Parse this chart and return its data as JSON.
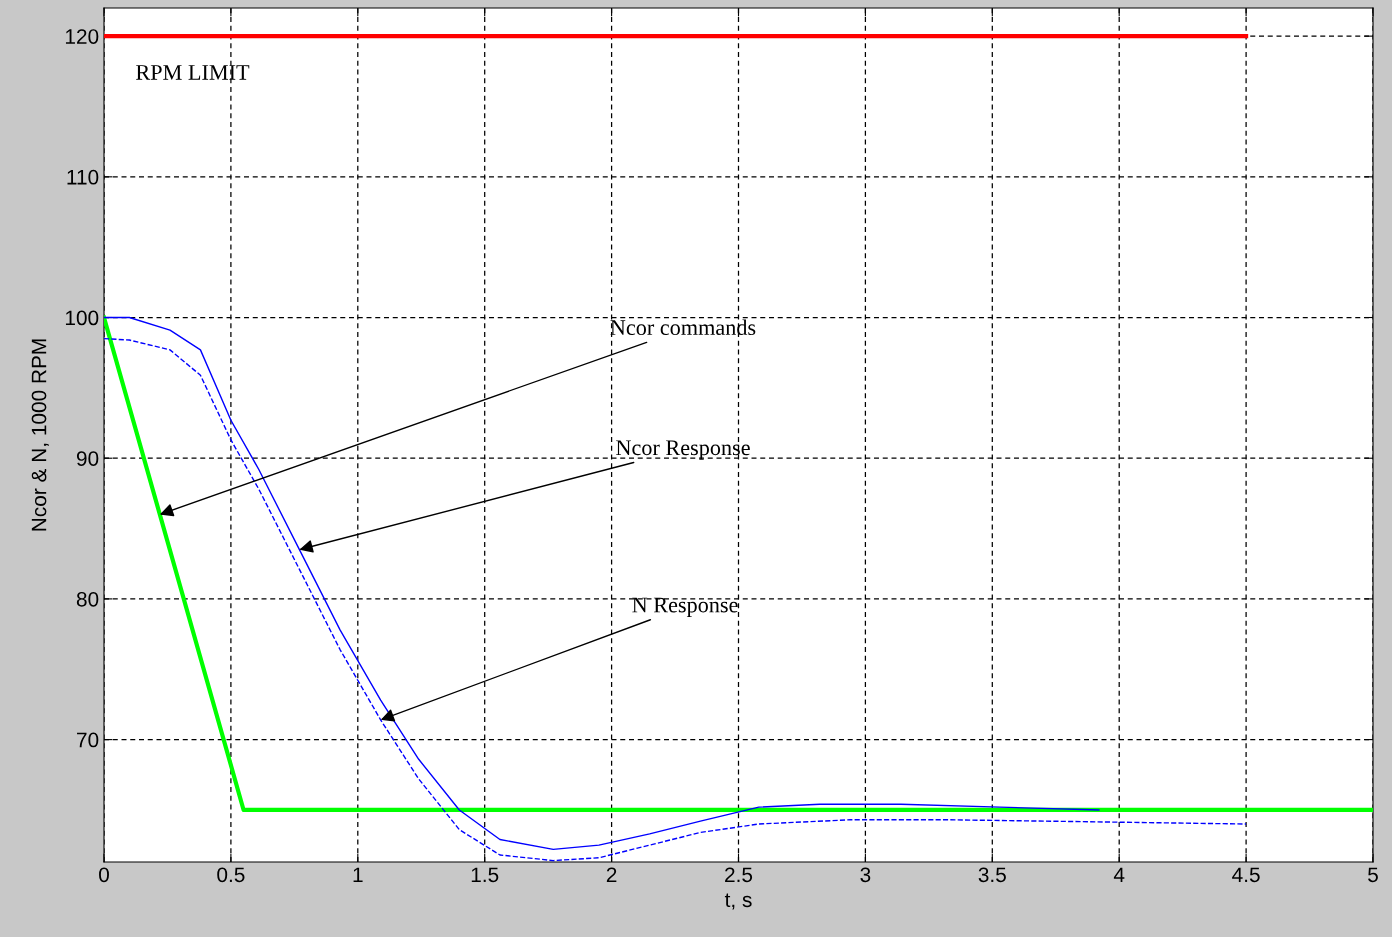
{
  "chart_data": {
    "type": "line",
    "xlabel": "t, s",
    "ylabel": "Ncor & N, 1000 RPM",
    "xlim": [
      0,
      5
    ],
    "xticks": [
      0,
      0.5,
      1,
      1.5,
      2,
      2.5,
      3,
      3.5,
      4,
      4.5,
      5
    ],
    "ylim": [
      61.3,
      122
    ],
    "yticks": [
      70,
      80,
      90,
      100,
      110,
      120
    ],
    "grid": true,
    "series": [
      {
        "name": "RPM LIMIT",
        "color": "#ff0000",
        "line_style": "solid",
        "x": [
          0,
          4.5
        ],
        "values": [
          120,
          120
        ]
      },
      {
        "color": "#00ff00",
        "line_style": "solid",
        "x": [
          0,
          0.55,
          5
        ],
        "values": [
          100,
          65,
          65
        ]
      },
      {
        "color": "#0000ff",
        "line_style": "solid",
        "x": [
          0,
          0.1,
          0.26,
          0.38,
          0.5,
          0.61,
          0.77,
          0.93,
          1.09,
          1.24,
          1.4,
          1.56,
          1.77,
          1.95,
          2.15,
          2.35,
          2.58,
          2.82,
          3.14,
          3.53,
          3.92
        ],
        "values": [
          100,
          100,
          99.1,
          97.7,
          92.7,
          89.2,
          83.5,
          77.8,
          72.8,
          68.6,
          65.0,
          62.9,
          62.2,
          62.5,
          63.3,
          64.2,
          65.2,
          65.4,
          65.4,
          65.2,
          65.0
        ]
      },
      {
        "color": "#0000ff",
        "line_style": "dashed",
        "x": [
          0,
          0.1,
          0.26,
          0.38,
          0.5,
          0.61,
          0.77,
          0.93,
          1.09,
          1.24,
          1.4,
          1.56,
          1.77,
          1.95,
          2.15,
          2.35,
          2.58,
          2.94,
          3.33,
          3.73,
          4.5
        ],
        "values": [
          98.5,
          98.4,
          97.7,
          95.9,
          91.3,
          87.8,
          82.1,
          76.4,
          71.4,
          67.2,
          63.6,
          61.8,
          61.4,
          61.6,
          62.5,
          63.4,
          64.0,
          64.3,
          64.3,
          64.2,
          64.0
        ]
      }
    ],
    "annotations": [
      {
        "text": "Ncor commands",
        "x": 0.22,
        "y": 86
      },
      {
        "text": "Ncor Response",
        "x": 0.77,
        "y": 83.5
      },
      {
        "text": "N Response",
        "x": 1.09,
        "y": 71.4
      }
    ]
  }
}
